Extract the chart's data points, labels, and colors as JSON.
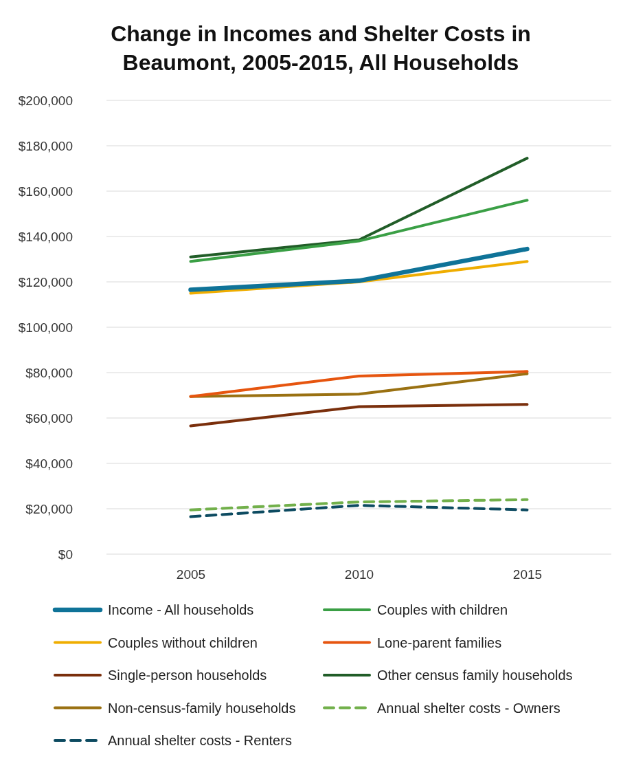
{
  "chart_data": {
    "type": "line",
    "title": "Change in Incomes and Shelter Costs in Beaumont, 2005-2015, All Households",
    "categories": [
      "2005",
      "2010",
      "2015"
    ],
    "series": [
      {
        "name": "Income - All households",
        "color": "#0f7398",
        "values": [
          116500,
          120500,
          134500
        ]
      },
      {
        "name": "Couples with children",
        "color": "#3a9f45",
        "values": [
          129000,
          138000,
          156000
        ]
      },
      {
        "name": "Couples without children",
        "color": "#efad00",
        "values": [
          115000,
          120000,
          129000
        ]
      },
      {
        "name": "Lone-parent families",
        "color": "#e6550f",
        "values": [
          69500,
          78500,
          80500
        ]
      },
      {
        "name": "Single-person households",
        "color": "#7a2f0c",
        "values": [
          56500,
          65000,
          66000
        ]
      },
      {
        "name": "Other census family households",
        "color": "#215d28",
        "values": [
          131000,
          138500,
          174500
        ]
      },
      {
        "name": "Non-census-family households",
        "color": "#9a7112",
        "values": [
          69500,
          70500,
          79500
        ]
      },
      {
        "name": "Annual shelter costs - Owners",
        "color": "#72b04b",
        "values": [
          19500,
          23000,
          24000
        ],
        "line_style": "dashed"
      },
      {
        "name": "Annual shelter costs - Renters",
        "color": "#0d4b61",
        "values": [
          16500,
          21500,
          19500
        ],
        "line_style": "dashed"
      }
    ],
    "ylim": [
      0,
      200000
    ],
    "yticks": [
      {
        "value": 0,
        "label": "$0"
      },
      {
        "value": 20000,
        "label": "$20,000"
      },
      {
        "value": 40000,
        "label": "$40,000"
      },
      {
        "value": 60000,
        "label": "$60,000"
      },
      {
        "value": 80000,
        "label": "$80,000"
      },
      {
        "value": 100000,
        "label": "$100,000"
      },
      {
        "value": 120000,
        "label": "$120,000"
      },
      {
        "value": 140000,
        "label": "$140,000"
      },
      {
        "value": 160000,
        "label": "$160,000"
      },
      {
        "value": 180000,
        "label": "$180,000"
      },
      {
        "value": 200000,
        "label": "$200,000"
      }
    ],
    "grid": "y",
    "legend": "bottom",
    "line_style": "solid"
  }
}
